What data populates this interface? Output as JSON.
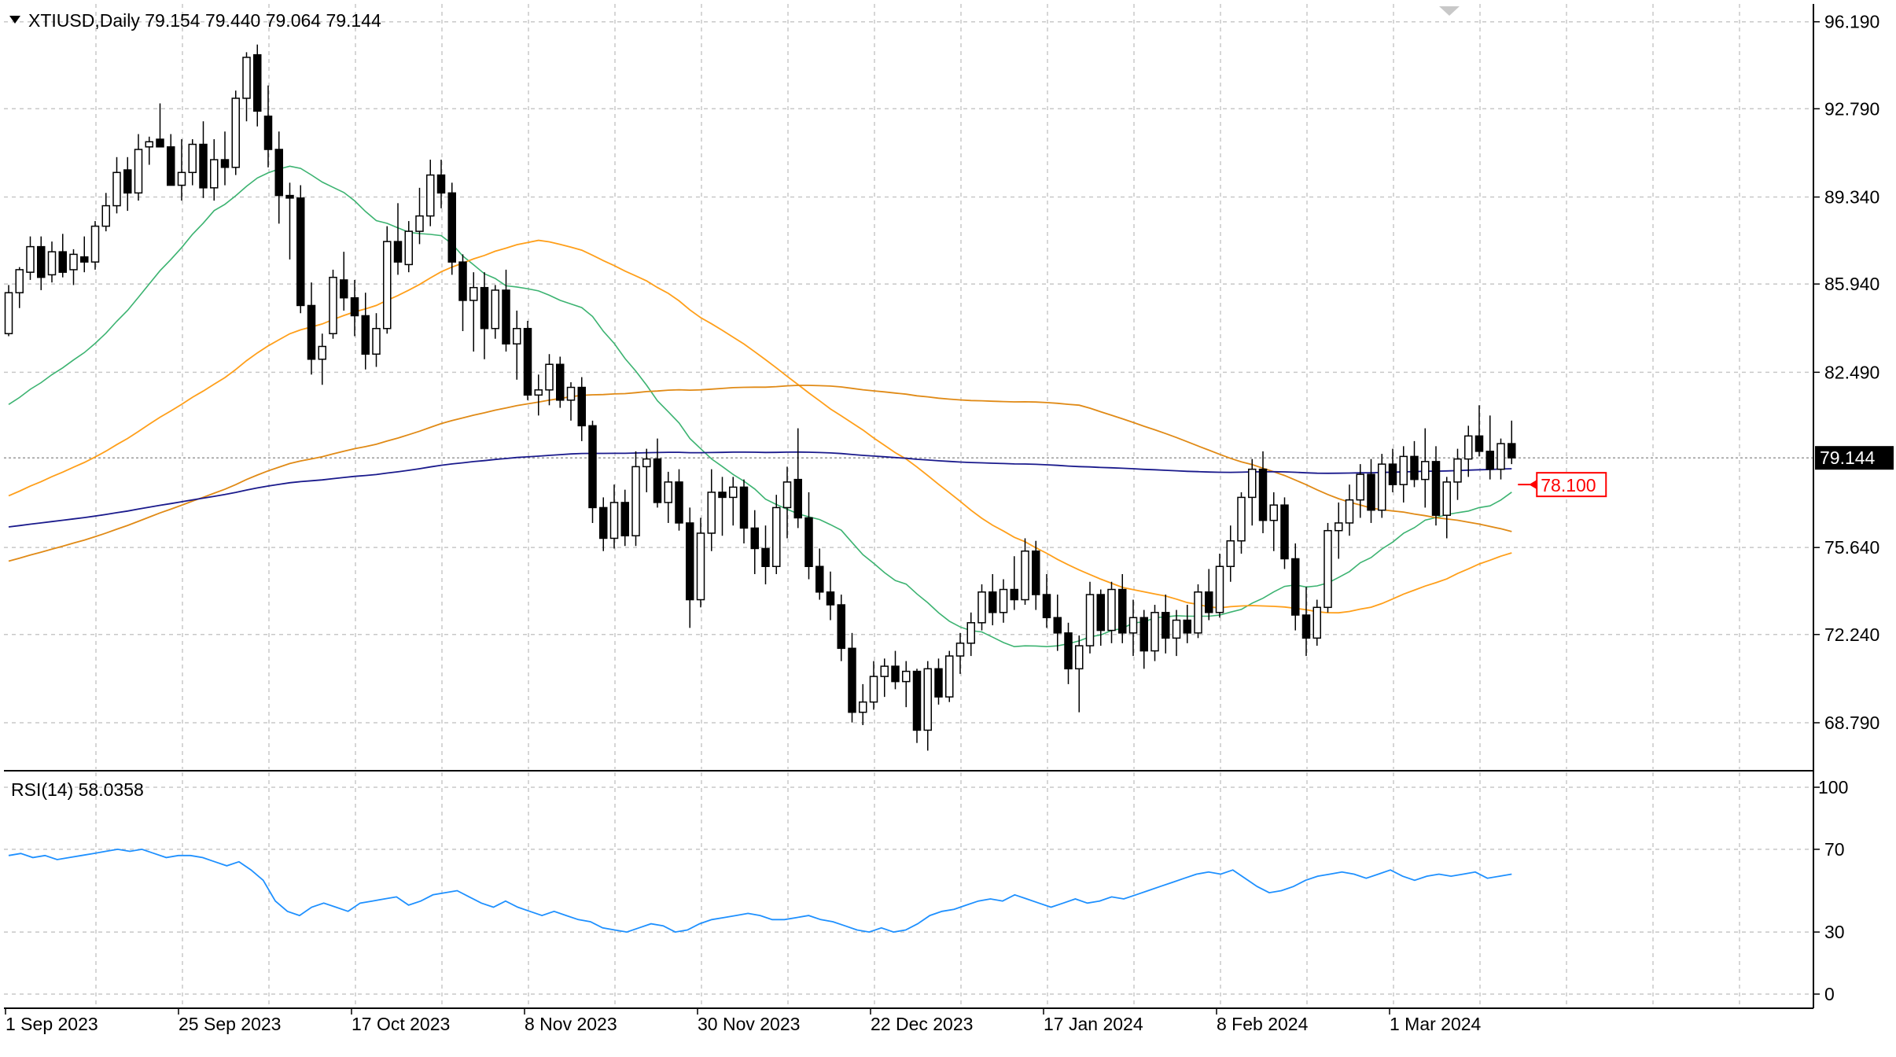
{
  "header": {
    "symbol_line": "XTIUSD,Daily  79.154 79.440 79.064 79.144",
    "rsi_label": "RSI(14) 58.0358"
  },
  "colors": {
    "background": "#ffffff",
    "grid": "#c8c8c8",
    "bull_fill": "#ffffff",
    "bear_fill": "#000000",
    "candle_stroke": "#000000",
    "ma_fast": "#3cb371",
    "ma_mid": "#ff9f1a",
    "ma_slow": "#e08a16",
    "ma_long": "#1a1a8c",
    "rsi_line": "#1e90ff",
    "alert_color": "#ff0000",
    "last_price_bg": "#000000"
  },
  "last_price_label": "79.144",
  "alert_label": "78.100",
  "chart_data": {
    "type": "candlestick",
    "title": "XTIUSD,Daily",
    "y_ticks": [
      "96.190",
      "92.790",
      "89.340",
      "85.940",
      "82.490",
      "79.144",
      "75.640",
      "72.240",
      "68.790"
    ],
    "y_tick_values": [
      96.19,
      92.79,
      89.34,
      85.94,
      82.49,
      79.144,
      75.64,
      72.24,
      68.79
    ],
    "ylim": [
      66.8,
      96.6
    ],
    "x_labels": [
      "1 Sep 2023",
      "25 Sep 2023",
      "17 Oct 2023",
      "8 Nov 2023",
      "30 Nov 2023",
      "22 Dec 2023",
      "17 Jan 2024",
      "8 Feb 2024",
      "1 Mar 2024"
    ],
    "x_label_bar_index": [
      0,
      16,
      32,
      48,
      64,
      80,
      96,
      112,
      128
    ],
    "grid": true,
    "candles": [
      [
        84.0,
        85.9,
        83.9,
        85.6
      ],
      [
        85.6,
        86.6,
        85.0,
        86.5
      ],
      [
        86.4,
        87.8,
        86.1,
        87.4
      ],
      [
        87.4,
        87.8,
        85.7,
        86.2
      ],
      [
        86.3,
        87.6,
        86.0,
        87.2
      ],
      [
        87.2,
        87.9,
        86.2,
        86.4
      ],
      [
        86.5,
        87.3,
        85.9,
        87.1
      ],
      [
        87.0,
        87.8,
        86.4,
        86.8
      ],
      [
        86.8,
        88.4,
        86.5,
        88.2
      ],
      [
        88.2,
        89.5,
        88.0,
        89.0
      ],
      [
        89.0,
        90.9,
        88.7,
        90.3
      ],
      [
        90.4,
        90.9,
        88.8,
        89.5
      ],
      [
        89.5,
        91.8,
        89.2,
        91.2
      ],
      [
        91.3,
        91.7,
        90.6,
        91.5
      ],
      [
        91.6,
        93.0,
        91.3,
        91.3
      ],
      [
        91.3,
        91.8,
        89.9,
        89.8
      ],
      [
        89.8,
        91.6,
        89.2,
        90.3
      ],
      [
        90.3,
        91.6,
        89.8,
        91.4
      ],
      [
        91.4,
        92.3,
        89.3,
        89.7
      ],
      [
        89.7,
        91.6,
        89.2,
        90.8
      ],
      [
        90.8,
        91.9,
        89.8,
        90.5
      ],
      [
        90.5,
        93.5,
        90.2,
        93.2
      ],
      [
        93.2,
        95.0,
        92.3,
        94.8
      ],
      [
        94.9,
        95.3,
        92.1,
        92.7
      ],
      [
        92.5,
        93.7,
        90.5,
        91.2
      ],
      [
        91.2,
        91.9,
        88.3,
        89.4
      ],
      [
        89.4,
        89.9,
        86.9,
        89.3
      ],
      [
        89.3,
        89.8,
        84.8,
        85.1
      ],
      [
        85.1,
        86.0,
        82.4,
        83.0
      ],
      [
        83.0,
        84.0,
        82.0,
        83.5
      ],
      [
        84.0,
        86.5,
        83.8,
        86.2
      ],
      [
        86.1,
        87.2,
        84.9,
        85.4
      ],
      [
        85.4,
        86.1,
        83.9,
        84.7
      ],
      [
        84.7,
        85.6,
        82.6,
        83.2
      ],
      [
        83.2,
        84.8,
        82.7,
        84.2
      ],
      [
        84.2,
        88.2,
        84.0,
        87.6
      ],
      [
        87.6,
        89.1,
        86.3,
        86.8
      ],
      [
        86.7,
        88.4,
        86.4,
        88.0
      ],
      [
        88.0,
        89.7,
        87.5,
        88.6
      ],
      [
        88.6,
        90.8,
        88.2,
        90.2
      ],
      [
        90.2,
        90.8,
        88.9,
        89.5
      ],
      [
        89.5,
        89.9,
        86.3,
        86.8
      ],
      [
        86.8,
        87.1,
        84.1,
        85.3
      ],
      [
        85.3,
        86.4,
        83.3,
        85.8
      ],
      [
        85.8,
        86.4,
        83.0,
        84.2
      ],
      [
        84.2,
        85.9,
        83.8,
        85.7
      ],
      [
        85.7,
        86.5,
        83.3,
        83.6
      ],
      [
        83.6,
        84.9,
        82.2,
        84.2
      ],
      [
        84.2,
        84.5,
        81.4,
        81.6
      ],
      [
        81.6,
        82.4,
        80.8,
        81.8
      ],
      [
        81.8,
        83.2,
        81.2,
        82.8
      ],
      [
        82.8,
        83.1,
        81.1,
        81.4
      ],
      [
        81.4,
        82.1,
        80.6,
        81.9
      ],
      [
        81.9,
        82.3,
        79.8,
        80.4
      ],
      [
        80.4,
        80.6,
        76.6,
        77.2
      ],
      [
        77.2,
        77.6,
        75.5,
        76.0
      ],
      [
        76.0,
        78.1,
        75.6,
        77.4
      ],
      [
        77.4,
        77.9,
        75.7,
        76.1
      ],
      [
        76.1,
        79.4,
        75.7,
        78.8
      ],
      [
        78.8,
        79.5,
        77.8,
        79.1
      ],
      [
        79.1,
        79.9,
        77.2,
        77.4
      ],
      [
        77.4,
        78.6,
        76.6,
        78.2
      ],
      [
        78.2,
        78.7,
        76.3,
        76.6
      ],
      [
        76.6,
        77.2,
        72.5,
        73.6
      ],
      [
        73.6,
        76.8,
        73.3,
        76.2
      ],
      [
        76.2,
        78.7,
        75.5,
        77.8
      ],
      [
        77.8,
        78.4,
        76.1,
        77.6
      ],
      [
        77.6,
        78.4,
        76.5,
        78.0
      ],
      [
        78.0,
        78.3,
        75.8,
        76.4
      ],
      [
        76.4,
        77.1,
        74.6,
        75.6
      ],
      [
        75.6,
        76.5,
        74.2,
        74.9
      ],
      [
        74.9,
        77.7,
        74.6,
        77.2
      ],
      [
        77.2,
        78.8,
        76.0,
        78.2
      ],
      [
        78.3,
        80.3,
        76.4,
        76.8
      ],
      [
        76.8,
        77.8,
        74.4,
        74.9
      ],
      [
        74.9,
        75.6,
        73.6,
        73.9
      ],
      [
        73.9,
        74.7,
        72.8,
        73.4
      ],
      [
        73.4,
        73.8,
        71.2,
        71.7
      ],
      [
        71.7,
        72.3,
        68.8,
        69.2
      ],
      [
        69.2,
        70.3,
        68.7,
        69.6
      ],
      [
        69.6,
        71.2,
        69.3,
        70.6
      ],
      [
        70.6,
        71.3,
        69.8,
        71.0
      ],
      [
        71.0,
        71.6,
        70.1,
        70.4
      ],
      [
        70.4,
        71.2,
        69.4,
        70.8
      ],
      [
        70.8,
        70.9,
        68.0,
        68.5
      ],
      [
        68.5,
        71.2,
        67.7,
        70.9
      ],
      [
        70.9,
        71.3,
        69.5,
        69.8
      ],
      [
        69.8,
        71.6,
        69.6,
        71.4
      ],
      [
        71.4,
        72.3,
        70.7,
        71.9
      ],
      [
        71.9,
        73.1,
        71.4,
        72.7
      ],
      [
        72.7,
        74.2,
        72.4,
        73.9
      ],
      [
        73.9,
        74.6,
        72.6,
        73.1
      ],
      [
        73.1,
        74.4,
        72.7,
        74.0
      ],
      [
        74.0,
        75.3,
        73.2,
        73.6
      ],
      [
        73.6,
        76.0,
        73.4,
        75.5
      ],
      [
        75.5,
        75.9,
        73.2,
        73.8
      ],
      [
        73.8,
        74.6,
        72.5,
        72.9
      ],
      [
        72.9,
        73.8,
        71.6,
        72.3
      ],
      [
        72.3,
        72.7,
        70.3,
        70.9
      ],
      [
        70.9,
        72.2,
        69.2,
        71.8
      ],
      [
        71.8,
        74.3,
        71.5,
        73.8
      ],
      [
        73.8,
        74.0,
        71.8,
        72.4
      ],
      [
        72.4,
        74.3,
        71.9,
        74.0
      ],
      [
        74.0,
        74.6,
        71.9,
        72.3
      ],
      [
        72.3,
        73.6,
        71.4,
        72.9
      ],
      [
        72.9,
        73.2,
        70.9,
        71.6
      ],
      [
        71.6,
        73.4,
        71.2,
        73.1
      ],
      [
        73.1,
        73.8,
        71.5,
        72.1
      ],
      [
        72.1,
        73.2,
        71.4,
        72.8
      ],
      [
        72.8,
        73.4,
        71.9,
        72.3
      ],
      [
        72.3,
        74.2,
        72.1,
        73.9
      ],
      [
        73.9,
        74.8,
        72.8,
        73.1
      ],
      [
        73.1,
        75.4,
        72.9,
        74.9
      ],
      [
        74.9,
        76.5,
        74.3,
        75.9
      ],
      [
        75.9,
        77.8,
        75.4,
        77.6
      ],
      [
        77.6,
        79.1,
        76.5,
        78.7
      ],
      [
        78.7,
        79.4,
        76.2,
        76.7
      ],
      [
        76.7,
        77.8,
        75.5,
        77.3
      ],
      [
        77.3,
        77.6,
        74.8,
        75.2
      ],
      [
        75.2,
        75.8,
        72.4,
        73.0
      ],
      [
        73.0,
        74.1,
        71.4,
        72.1
      ],
      [
        72.1,
        73.6,
        71.8,
        73.3
      ],
      [
        73.3,
        76.6,
        73.1,
        76.3
      ],
      [
        76.3,
        77.4,
        75.2,
        76.6
      ],
      [
        76.6,
        78.1,
        76.1,
        77.5
      ],
      [
        77.5,
        78.9,
        76.8,
        78.5
      ],
      [
        78.5,
        79.1,
        76.6,
        77.1
      ],
      [
        77.1,
        79.3,
        76.8,
        78.9
      ],
      [
        78.9,
        79.5,
        77.8,
        78.1
      ],
      [
        78.1,
        79.6,
        77.4,
        79.2
      ],
      [
        79.2,
        79.8,
        78.0,
        78.3
      ],
      [
        78.3,
        80.3,
        77.2,
        79.0
      ],
      [
        79.0,
        79.6,
        76.5,
        76.9
      ],
      [
        76.9,
        78.4,
        76.0,
        78.2
      ],
      [
        78.2,
        79.5,
        77.5,
        79.1
      ],
      [
        79.1,
        80.4,
        78.4,
        80.0
      ],
      [
        80.0,
        81.2,
        79.2,
        79.4
      ],
      [
        79.4,
        80.8,
        78.3,
        78.7
      ],
      [
        78.7,
        79.9,
        78.3,
        79.7
      ],
      [
        79.7,
        80.6,
        78.9,
        79.144
      ]
    ],
    "ma_fast": [
      81.6,
      82.0,
      82.5,
      82.9,
      83.5,
      84.3,
      85.1,
      85.9,
      86.8,
      87.6,
      88.4,
      89.1,
      89.7,
      90.2,
      90.4,
      90.4,
      90.0,
      89.4,
      88.7,
      88.0,
      87.1,
      86.2,
      85.3,
      84.4,
      83.5,
      82.6,
      81.6,
      80.5,
      79.3,
      78.2,
      77.2,
      76.4,
      75.6,
      75.0,
      74.6,
      74.2,
      74.0,
      73.8,
      73.7,
      73.6,
      73.4,
      73.3,
      73.3,
      73.4,
      73.6,
      73.9,
      74.3,
      74.6,
      75.0,
      75.6,
      76.2,
      76.8,
      77.3,
      77.7,
      78.0,
      78.2
    ],
    "ma_mid_label": "",
    "rsi": {
      "values": [
        67,
        68,
        66,
        67,
        65,
        66,
        67,
        68,
        69,
        70,
        69,
        70,
        68,
        66,
        67,
        67,
        66,
        64,
        62,
        64,
        60,
        55,
        45,
        40,
        38,
        42,
        44,
        42,
        40,
        44,
        45,
        46,
        47,
        43,
        45,
        48,
        49,
        50,
        47,
        44,
        42,
        45,
        42,
        40,
        38,
        40,
        38,
        36,
        35,
        32,
        31,
        30,
        32,
        34,
        33,
        30,
        31,
        34,
        36,
        37,
        38,
        39,
        38,
        36,
        36,
        37,
        38,
        36,
        35,
        33,
        31,
        30,
        32,
        30,
        31,
        34,
        38,
        40,
        41,
        43,
        45,
        46,
        45,
        48,
        46,
        44,
        42,
        44,
        46,
        44,
        45,
        47,
        46,
        48,
        50,
        52,
        54,
        56,
        58,
        59,
        58,
        60,
        56,
        52,
        49,
        50,
        52,
        55,
        57,
        58,
        59,
        58,
        56,
        58,
        60,
        57,
        55,
        57,
        58,
        57,
        58,
        59,
        56,
        57,
        58
      ],
      "levels": [
        100,
        70,
        30,
        0
      ],
      "ylim": [
        0,
        100
      ]
    }
  }
}
